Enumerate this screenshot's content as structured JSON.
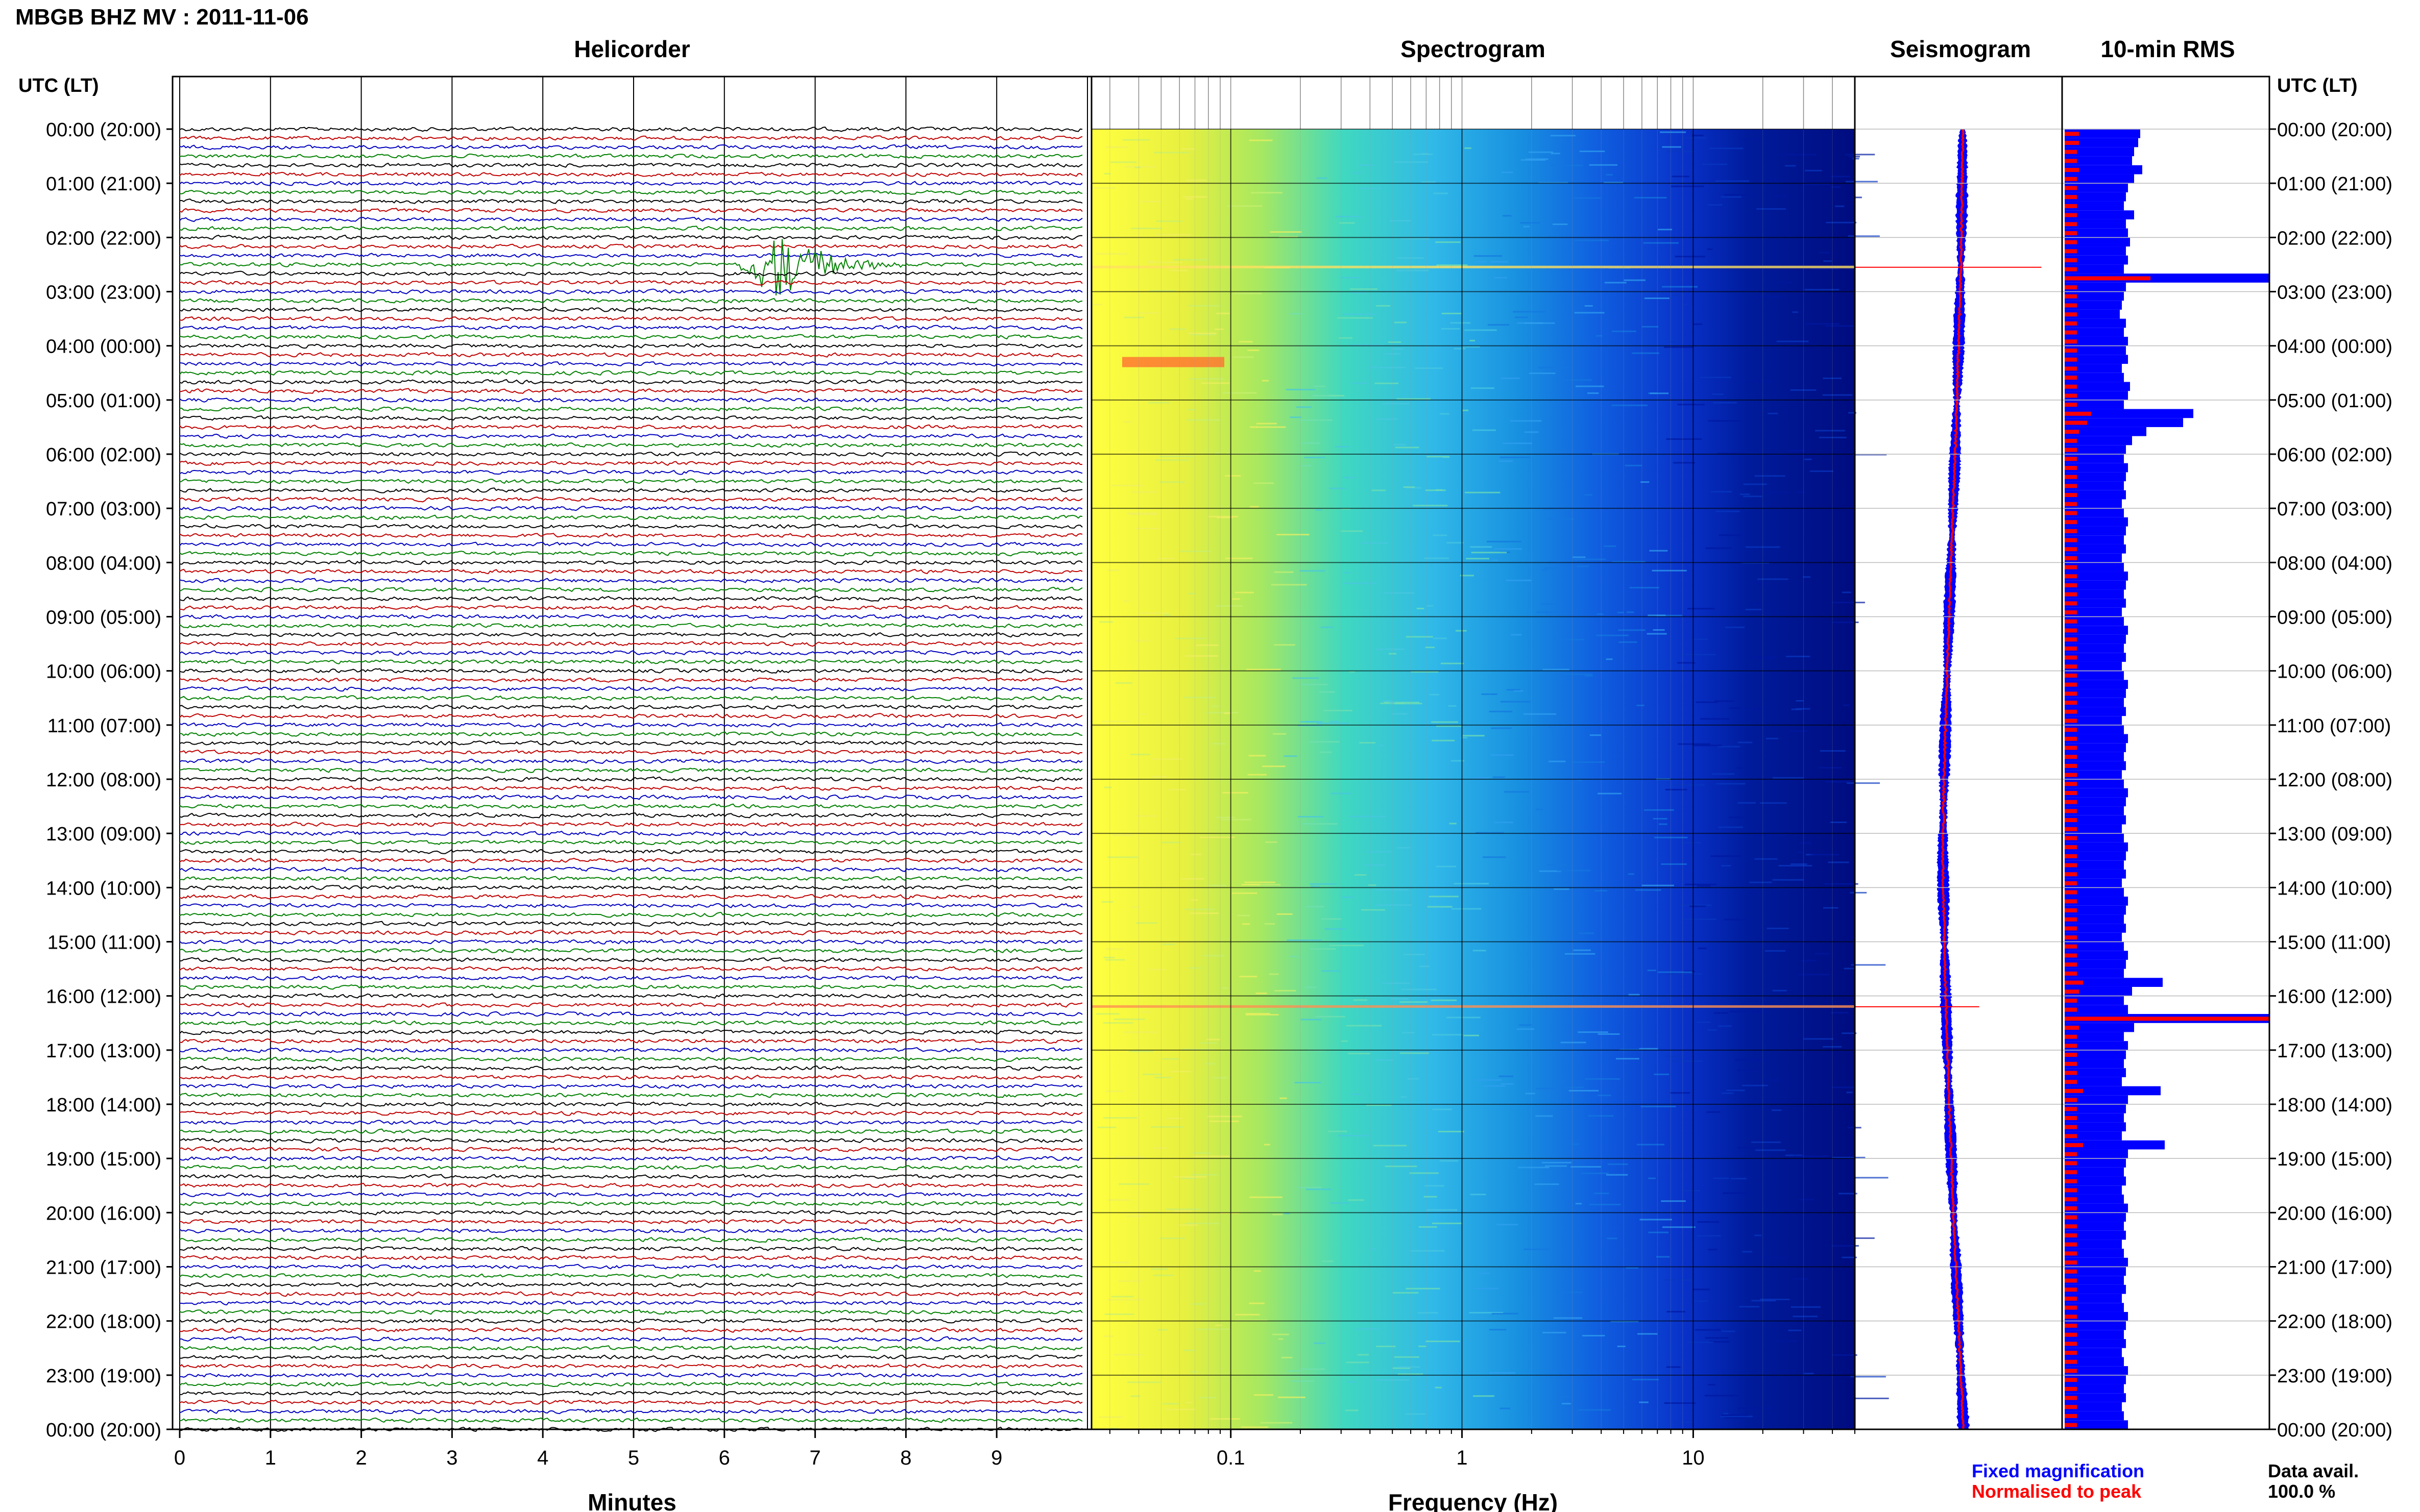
{
  "header": {
    "title": "MBGB BHZ MV : 2011-11-06"
  },
  "panels": {
    "helicorder": "Helicorder",
    "spectrogram": "Spectrogram",
    "seismogram": "Seismogram",
    "rms": "10-min RMS"
  },
  "axes": {
    "left_time_label": "UTC (LT)",
    "right_time_label": "UTC (LT)",
    "helicorder_xlabel": "Minutes",
    "spectrogram_xlabel": "Frequency (Hz)"
  },
  "legend": {
    "fixed": "Fixed magnification",
    "normalised": "Normalised to peak",
    "fixed_color": "#0000ff",
    "normalised_color": "#ff0000"
  },
  "data_avail": {
    "label": "Data avail.",
    "value": "100.0 %"
  },
  "colors": {
    "trace_cycle": [
      "#000000",
      "#c00000",
      "#0000c0",
      "#008000"
    ],
    "spectrogram_low": "#ffff00",
    "spectrogram_mid": "#40e0d0",
    "spectrogram_high": "#000080",
    "rms_fixed": "#0000ff",
    "rms_normalised": "#ff0000"
  },
  "chart_data": [
    {
      "type": "line",
      "name": "helicorder",
      "title": "Helicorder",
      "xlabel": "Minutes",
      "x_ticks": [
        "0",
        "1",
        "2",
        "3",
        "4",
        "5",
        "6",
        "7",
        "8",
        "9"
      ],
      "xlim": [
        0,
        10
      ],
      "time_labels": [
        "00:00 (20:00)",
        "01:00 (21:00)",
        "02:00 (22:00)",
        "03:00 (23:00)",
        "04:00 (00:00)",
        "05:00 (01:00)",
        "06:00 (02:00)",
        "07:00 (03:00)",
        "08:00 (04:00)",
        "09:00 (05:00)",
        "10:00 (06:00)",
        "11:00 (07:00)",
        "12:00 (08:00)",
        "13:00 (09:00)",
        "14:00 (10:00)",
        "15:00 (11:00)",
        "16:00 (12:00)",
        "17:00 (13:00)",
        "18:00 (14:00)",
        "19:00 (15:00)",
        "20:00 (16:00)",
        "21:00 (17:00)",
        "22:00 (18:00)",
        "23:00 (19:00)",
        "00:00 (20:00)"
      ],
      "lines_per_hour": 6,
      "events": [
        {
          "hour": 2.5,
          "minute_start": 6.1,
          "minute_peak": 6.6,
          "minute_end": 8.0,
          "amplitude": "large"
        },
        {
          "hour": 16.1,
          "minute_start": 4.8,
          "minute_peak": 4.95,
          "minute_end": 5.2,
          "amplitude": "step"
        },
        {
          "hour": 17.6,
          "minute_start": 6.3,
          "minute_peak": 6.45,
          "minute_end": 6.7,
          "amplitude": "dip"
        }
      ]
    },
    {
      "type": "heatmap",
      "name": "spectrogram",
      "title": "Spectrogram",
      "xlabel": "Frequency (Hz)",
      "x_scale": "log",
      "xlim": [
        0.025,
        50
      ],
      "x_ticks": [
        "0.1",
        "1",
        "10"
      ],
      "colormap": "yellow-cyan-blue"
    },
    {
      "type": "line",
      "name": "seismogram",
      "title": "Seismogram",
      "series": [
        {
          "name": "Fixed magnification",
          "color": "#0000ff"
        },
        {
          "name": "Normalised to peak",
          "color": "#ff0000"
        }
      ]
    },
    {
      "type": "bar",
      "name": "10-min RMS",
      "title": "10-min RMS",
      "orientation": "horizontal",
      "series": [
        {
          "name": "Fixed magnification",
          "color": "#0000ff"
        },
        {
          "name": "Normalised to peak",
          "color": "#ff0000"
        }
      ],
      "bins_per_hour": 6,
      "hours": 24,
      "fixed_values": [
        0.37,
        0.36,
        0.34,
        0.33,
        0.38,
        0.34,
        0.31,
        0.3,
        0.29,
        0.34,
        0.3,
        0.31,
        0.32,
        0.3,
        0.31,
        0.29,
        1.0,
        0.3,
        0.29,
        0.28,
        0.27,
        0.3,
        0.29,
        0.31,
        0.3,
        0.31,
        0.28,
        0.29,
        0.32,
        0.31,
        0.29,
        0.63,
        0.58,
        0.4,
        0.33,
        0.3,
        0.29,
        0.31,
        0.3,
        0.29,
        0.3,
        0.28,
        0.29,
        0.31,
        0.3,
        0.29,
        0.3,
        0.28,
        0.29,
        0.31,
        0.3,
        0.29,
        0.3,
        0.28,
        0.29,
        0.31,
        0.3,
        0.29,
        0.3,
        0.28,
        0.29,
        0.31,
        0.3,
        0.29,
        0.3,
        0.28,
        0.29,
        0.31,
        0.3,
        0.29,
        0.3,
        0.28,
        0.29,
        0.31,
        0.3,
        0.29,
        0.3,
        0.28,
        0.29,
        0.31,
        0.3,
        0.29,
        0.3,
        0.28,
        0.29,
        0.31,
        0.3,
        0.29,
        0.3,
        0.28,
        0.29,
        0.31,
        0.3,
        0.29,
        0.48,
        0.33,
        0.29,
        0.31,
        1.0,
        0.34,
        0.29,
        0.31,
        0.3,
        0.29,
        0.3,
        0.28,
        0.47,
        0.31,
        0.3,
        0.29,
        0.3,
        0.28,
        0.49,
        0.31,
        0.3,
        0.29,
        0.3,
        0.28,
        0.29,
        0.31,
        0.3,
        0.29,
        0.3,
        0.28,
        0.29,
        0.31,
        0.3,
        0.29,
        0.3,
        0.28,
        0.29,
        0.31,
        0.3,
        0.29,
        0.3,
        0.28,
        0.29,
        0.31,
        0.3,
        0.29,
        0.3,
        0.28,
        0.29,
        0.31,
        0.3,
        0.29
      ],
      "normalised_values": [
        0.07,
        0.07,
        0.06,
        0.06,
        0.07,
        0.06,
        0.06,
        0.06,
        0.06,
        0.06,
        0.06,
        0.06,
        0.06,
        0.06,
        0.06,
        0.06,
        0.42,
        0.06,
        0.06,
        0.06,
        0.06,
        0.06,
        0.06,
        0.06,
        0.06,
        0.06,
        0.06,
        0.06,
        0.06,
        0.06,
        0.06,
        0.13,
        0.11,
        0.07,
        0.06,
        0.06,
        0.06,
        0.06,
        0.06,
        0.06,
        0.06,
        0.06,
        0.06,
        0.06,
        0.06,
        0.06,
        0.06,
        0.06,
        0.06,
        0.06,
        0.06,
        0.06,
        0.06,
        0.06,
        0.06,
        0.06,
        0.06,
        0.06,
        0.06,
        0.06,
        0.06,
        0.06,
        0.06,
        0.06,
        0.06,
        0.06,
        0.06,
        0.06,
        0.06,
        0.06,
        0.06,
        0.06,
        0.06,
        0.06,
        0.06,
        0.06,
        0.06,
        0.06,
        0.06,
        0.06,
        0.06,
        0.06,
        0.06,
        0.06,
        0.06,
        0.06,
        0.06,
        0.06,
        0.06,
        0.06,
        0.06,
        0.06,
        0.06,
        0.06,
        0.09,
        0.07,
        0.06,
        0.06,
        1.0,
        0.07,
        0.06,
        0.06,
        0.06,
        0.06,
        0.06,
        0.06,
        0.09,
        0.06,
        0.06,
        0.06,
        0.06,
        0.06,
        0.09,
        0.06,
        0.06,
        0.06,
        0.06,
        0.06,
        0.06,
        0.06,
        0.06,
        0.06,
        0.06,
        0.06,
        0.06,
        0.06,
        0.06,
        0.06,
        0.06,
        0.06,
        0.06,
        0.06,
        0.06,
        0.06,
        0.06,
        0.06,
        0.06,
        0.06,
        0.06,
        0.06,
        0.06,
        0.06,
        0.06,
        0.06,
        0.06,
        0.06
      ]
    }
  ]
}
